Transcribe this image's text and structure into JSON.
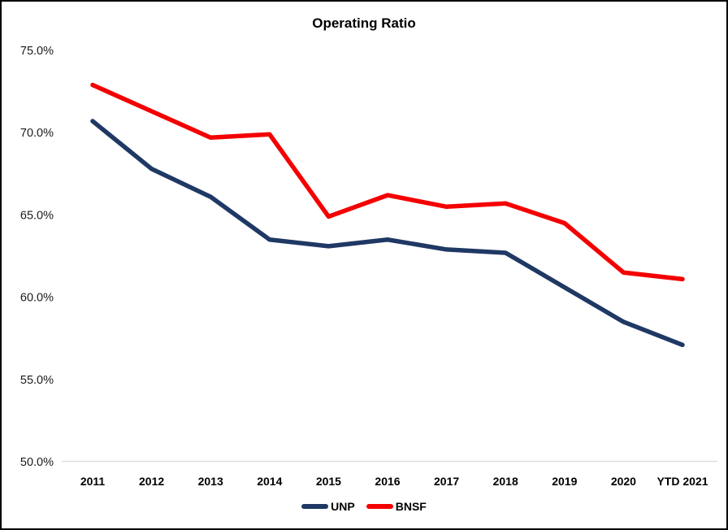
{
  "window": {
    "background": "#ffffff",
    "border_color": "#000000"
  },
  "chart_data": {
    "type": "line",
    "title": "Operating Ratio",
    "categories": [
      "2011",
      "2012",
      "2013",
      "2014",
      "2015",
      "2016",
      "2017",
      "2018",
      "2019",
      "2020",
      "YTD 2021"
    ],
    "series": [
      {
        "name": "UNP",
        "color": "#1f3864",
        "values": [
          70.7,
          67.8,
          66.1,
          63.5,
          63.1,
          63.5,
          62.9,
          62.7,
          60.6,
          58.5,
          57.1
        ]
      },
      {
        "name": "BNSF",
        "color": "#f40000",
        "values": [
          72.9,
          71.3,
          69.7,
          69.9,
          64.9,
          66.2,
          65.5,
          65.7,
          64.5,
          61.5,
          61.1
        ]
      }
    ],
    "xlabel": "",
    "ylabel": "",
    "ylim": [
      50,
      75
    ],
    "y_tick_labels": [
      "75.0%",
      "70.0%",
      "65.0%",
      "60.0%",
      "55.0%",
      "50.0%"
    ],
    "y_tick_values": [
      75,
      70,
      65,
      60,
      55,
      50
    ],
    "grid": "off",
    "baseline_axis_color": "#d9d9d9",
    "legend_position": "bottom-center",
    "line_width": 5.5
  }
}
